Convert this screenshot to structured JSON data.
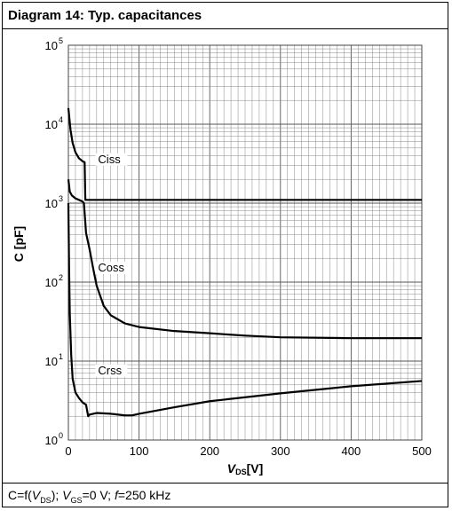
{
  "title": "Diagram 14: Typ. capacitances",
  "footer": {
    "expr": "C=f(",
    "vds_v": "V",
    "vds_sub": "DS",
    "close": "); ",
    "vgs_v": "V",
    "vgs_sub": "GS",
    "vgs_val": "=0 V; ",
    "f_var": "f",
    "f_val": "=250 kHz"
  },
  "chart_data": {
    "type": "line",
    "xlabel_v": "V",
    "xlabel_sub": "DS",
    "xlabel_unit": "[V]",
    "ylabel": "C [pF]",
    "xlim": [
      0,
      500
    ],
    "ylim": [
      1,
      100000
    ],
    "yscale": "log",
    "grid": true,
    "x_ticks": [
      0,
      100,
      200,
      300,
      400,
      500
    ],
    "y_ticks": [
      {
        "value": 1,
        "base": "10",
        "exp": "0"
      },
      {
        "value": 10,
        "base": "10",
        "exp": "1"
      },
      {
        "value": 100,
        "base": "10",
        "exp": "2"
      },
      {
        "value": 1000,
        "base": "10",
        "exp": "3"
      },
      {
        "value": 10000,
        "base": "10",
        "exp": "4"
      },
      {
        "value": 100000,
        "base": "10",
        "exp": "5"
      }
    ],
    "series": [
      {
        "name": "Ciss",
        "x": [
          0,
          3,
          6,
          10,
          15,
          20,
          23,
          24,
          26,
          30,
          50,
          100,
          200,
          300,
          400,
          500
        ],
        "y": [
          16000,
          8500,
          5800,
          4400,
          3700,
          3400,
          3300,
          1100,
          1100,
          1100,
          1100,
          1100,
          1100,
          1100,
          1100,
          1100
        ],
        "color": "#000000"
      },
      {
        "name": "Coss",
        "x": [
          0,
          2,
          5,
          10,
          15,
          20,
          22,
          25,
          30,
          35,
          40,
          50,
          60,
          80,
          100,
          150,
          200,
          250,
          300,
          400,
          500
        ],
        "y": [
          2000,
          1400,
          1250,
          1150,
          1100,
          1050,
          1000,
          420,
          260,
          150,
          90,
          50,
          38,
          30,
          27,
          24,
          22.5,
          21,
          20,
          19.5,
          19.5
        ],
        "color": "#000000"
      },
      {
        "name": "Crss",
        "x": [
          0,
          1,
          2,
          4,
          6,
          10,
          15,
          20,
          25,
          28,
          30,
          40,
          60,
          80,
          90,
          100,
          150,
          200,
          300,
          400,
          500
        ],
        "y": [
          1000,
          150,
          40,
          12,
          6,
          4,
          3.4,
          3,
          2.8,
          2.0,
          2.1,
          2.2,
          2.15,
          2.05,
          2.05,
          2.15,
          2.6,
          3.1,
          3.9,
          4.8,
          5.6
        ],
        "color": "#000000"
      }
    ],
    "labels": [
      {
        "text": "Ciss",
        "x": 42,
        "y": 3300
      },
      {
        "text": "Coss",
        "x": 42,
        "y": 140
      },
      {
        "text": "Crss",
        "x": 42,
        "y": 7
      }
    ]
  }
}
